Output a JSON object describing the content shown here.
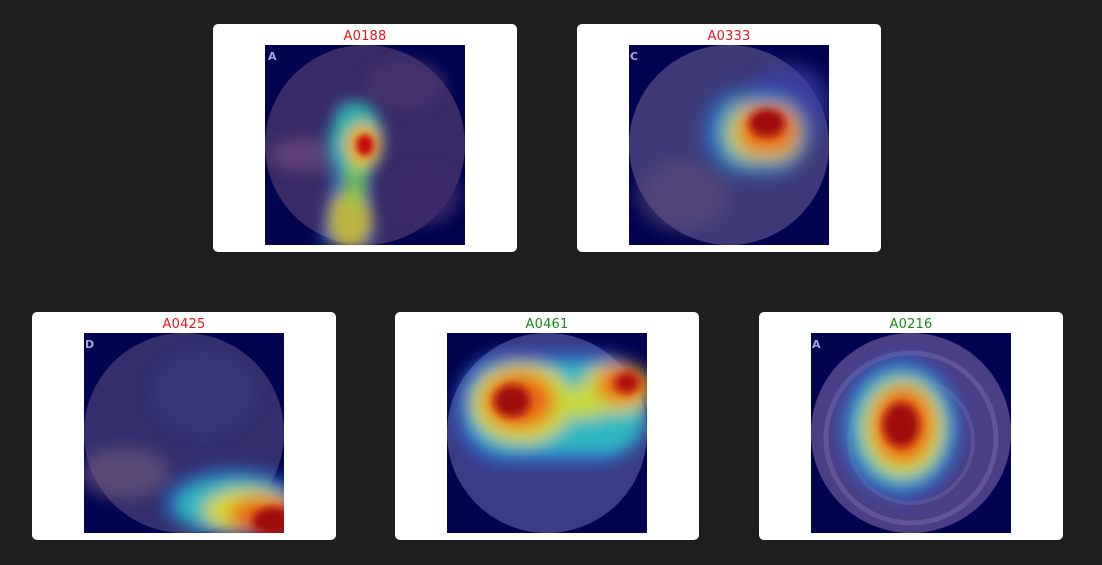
{
  "colors": {
    "background": "#1e1e1e",
    "card": "#ffffff",
    "incorrect_label": "#e8141c",
    "correct_label": "#1a8a1a"
  },
  "cards": [
    {
      "id": "A0188",
      "status": "incorrect",
      "corner_letter": "A"
    },
    {
      "id": "A0333",
      "status": "incorrect",
      "corner_letter": "C"
    },
    {
      "id": "A0425",
      "status": "incorrect",
      "corner_letter": "D"
    },
    {
      "id": "A0461",
      "status": "correct",
      "corner_letter": ""
    },
    {
      "id": "A0216",
      "status": "correct",
      "corner_letter": "A"
    }
  ]
}
